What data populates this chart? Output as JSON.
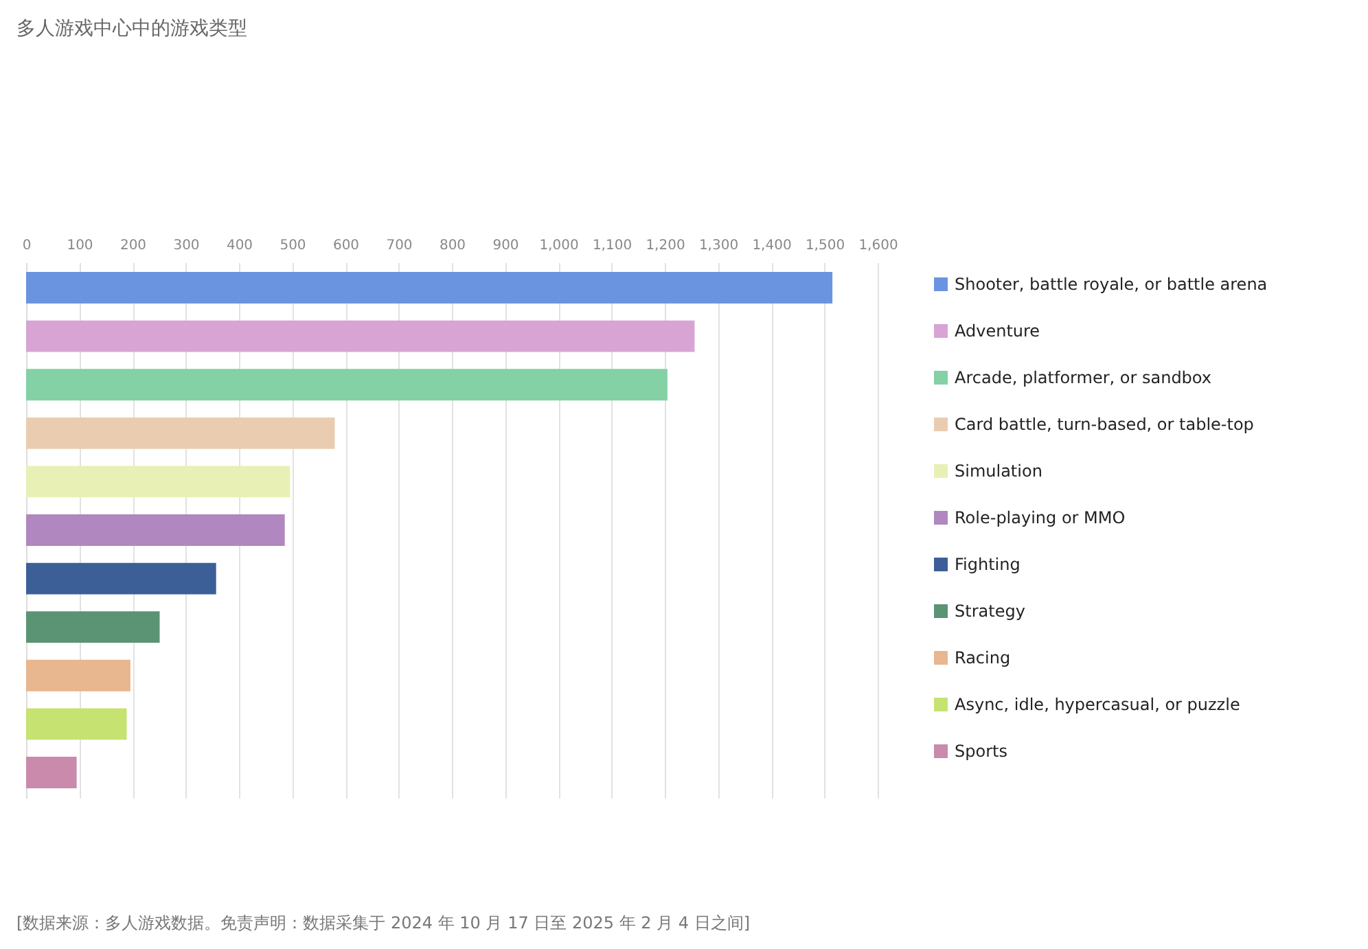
{
  "chart_data": {
    "type": "bar",
    "orientation": "horizontal",
    "stacked": true,
    "title": "多人游戏中心中的游戏类型",
    "categories": [
      null,
      null,
      null,
      null,
      null,
      null,
      null,
      null,
      null,
      null,
      null
    ],
    "series": [
      {
        "name": "Shooter, battle royale, or battle arena",
        "color": "#6a94e0",
        "values": [
          1515,
          null,
          null,
          null,
          null,
          null,
          null,
          null,
          null,
          null,
          null
        ]
      },
      {
        "name": "Adventure",
        "color": "#d7a4d4",
        "values": [
          null,
          1256,
          null,
          null,
          null,
          null,
          null,
          null,
          null,
          null,
          null
        ]
      },
      {
        "name": "Arcade, platformer, or sandbox",
        "color": "#83d1a4",
        "values": [
          null,
          null,
          1205,
          null,
          null,
          null,
          null,
          null,
          null,
          null,
          null
        ]
      },
      {
        "name": "Card battle, turn-based, or table-top",
        "color": "#eacdb1",
        "values": [
          null,
          null,
          null,
          580,
          null,
          null,
          null,
          null,
          null,
          null,
          null
        ]
      },
      {
        "name": "Simulation",
        "color": "#e9f0b6",
        "values": [
          null,
          null,
          null,
          null,
          496,
          null,
          null,
          null,
          null,
          null,
          null
        ]
      },
      {
        "name": "Role-playing or MMO",
        "color": "#b087be",
        "values": [
          null,
          null,
          null,
          null,
          null,
          486,
          null,
          null,
          null,
          null,
          null
        ]
      },
      {
        "name": "Fighting",
        "color": "#3d5f97",
        "values": [
          null,
          null,
          null,
          null,
          null,
          null,
          357,
          null,
          null,
          null,
          null
        ]
      },
      {
        "name": "Strategy",
        "color": "#5a9474",
        "values": [
          null,
          null,
          null,
          null,
          null,
          null,
          null,
          251,
          null,
          null,
          null
        ]
      },
      {
        "name": "Racing",
        "color": "#e8b68f",
        "values": [
          null,
          null,
          null,
          null,
          null,
          null,
          null,
          null,
          196,
          null,
          null
        ]
      },
      {
        "name": "Async, idle, hypercasual, or puzzle",
        "color": "#c6e270",
        "values": [
          null,
          null,
          null,
          null,
          null,
          null,
          null,
          null,
          null,
          189,
          null
        ]
      },
      {
        "name": "Sports",
        "color": "#c98aab",
        "values": [
          null,
          null,
          null,
          null,
          null,
          null,
          null,
          null,
          null,
          null,
          95
        ]
      }
    ],
    "xlim": [
      0,
      1600
    ],
    "xticks": [
      0,
      100,
      200,
      300,
      400,
      500,
      600,
      700,
      800,
      900,
      {
        "value": 1000,
        "label": "1,000"
      },
      {
        "value": 1100,
        "label": "1,100"
      },
      {
        "value": 1200,
        "label": "1,200"
      },
      {
        "value": 1300,
        "label": "1,300"
      },
      {
        "value": 1400,
        "label": "1,400"
      },
      {
        "value": 1500,
        "label": "1,500"
      },
      {
        "value": 1600,
        "label": "1,600"
      }
    ],
    "grid": "x",
    "legend": "right",
    "tick_labels": "x",
    "annotations": [
      "[数据来源：多人游戏数据。免责声明：数据采集于 2024 年 10 月 17 日至 2025 年 2 月 4 日之间]"
    ]
  }
}
